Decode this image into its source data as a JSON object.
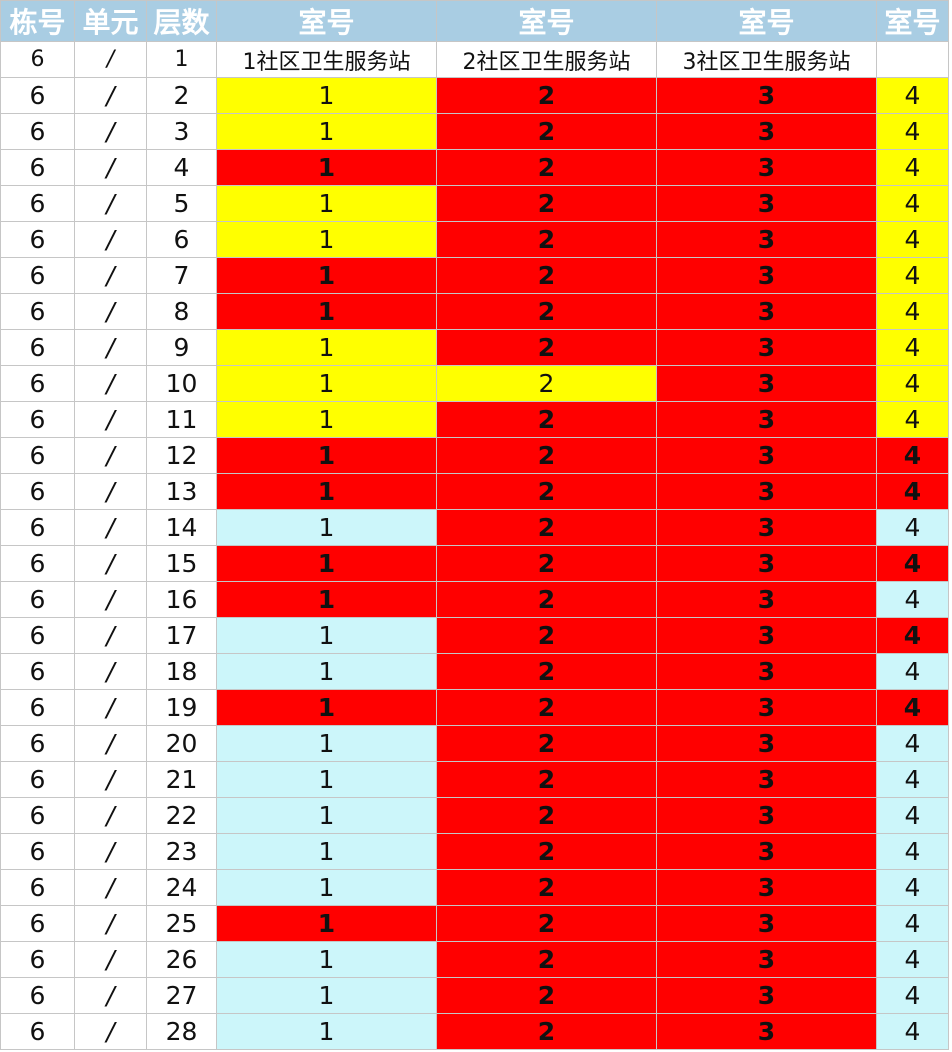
{
  "headers": [
    "栋号",
    "单元",
    "层数",
    "室号",
    "室号",
    "室号",
    "室号"
  ],
  "subheaders": [
    "6",
    "/",
    "1",
    "1社区卫生服务站",
    "2社区卫生服务站",
    "3社区卫生服务站",
    ""
  ],
  "colors": {
    "Y": "#ffff00",
    "R": "#ff0000",
    "C": "#ccf6fa",
    "header": "#a9cde3"
  },
  "rows": [
    {
      "floor": "2",
      "c1": "Y",
      "c2": "R",
      "c3": "R",
      "c4": "Y"
    },
    {
      "floor": "3",
      "c1": "Y",
      "c2": "R",
      "c3": "R",
      "c4": "Y"
    },
    {
      "floor": "4",
      "c1": "R",
      "c2": "R",
      "c3": "R",
      "c4": "Y"
    },
    {
      "floor": "5",
      "c1": "Y",
      "c2": "R",
      "c3": "R",
      "c4": "Y"
    },
    {
      "floor": "6",
      "c1": "Y",
      "c2": "R",
      "c3": "R",
      "c4": "Y"
    },
    {
      "floor": "7",
      "c1": "R",
      "c2": "R",
      "c3": "R",
      "c4": "Y"
    },
    {
      "floor": "8",
      "c1": "R",
      "c2": "R",
      "c3": "R",
      "c4": "Y"
    },
    {
      "floor": "9",
      "c1": "Y",
      "c2": "R",
      "c3": "R",
      "c4": "Y"
    },
    {
      "floor": "10",
      "c1": "Y",
      "c2": "Y",
      "c3": "R",
      "c4": "Y"
    },
    {
      "floor": "11",
      "c1": "Y",
      "c2": "R",
      "c3": "R",
      "c4": "Y"
    },
    {
      "floor": "12",
      "c1": "R",
      "c2": "R",
      "c3": "R",
      "c4": "R"
    },
    {
      "floor": "13",
      "c1": "R",
      "c2": "R",
      "c3": "R",
      "c4": "R"
    },
    {
      "floor": "14",
      "c1": "C",
      "c2": "R",
      "c3": "R",
      "c4": "C"
    },
    {
      "floor": "15",
      "c1": "R",
      "c2": "R",
      "c3": "R",
      "c4": "R"
    },
    {
      "floor": "16",
      "c1": "R",
      "c2": "R",
      "c3": "R",
      "c4": "C"
    },
    {
      "floor": "17",
      "c1": "C",
      "c2": "R",
      "c3": "R",
      "c4": "R"
    },
    {
      "floor": "18",
      "c1": "C",
      "c2": "R",
      "c3": "R",
      "c4": "C"
    },
    {
      "floor": "19",
      "c1": "R",
      "c2": "R",
      "c3": "R",
      "c4": "R"
    },
    {
      "floor": "20",
      "c1": "C",
      "c2": "R",
      "c3": "R",
      "c4": "C"
    },
    {
      "floor": "21",
      "c1": "C",
      "c2": "R",
      "c3": "R",
      "c4": "C"
    },
    {
      "floor": "22",
      "c1": "C",
      "c2": "R",
      "c3": "R",
      "c4": "C"
    },
    {
      "floor": "23",
      "c1": "C",
      "c2": "R",
      "c3": "R",
      "c4": "C"
    },
    {
      "floor": "24",
      "c1": "C",
      "c2": "R",
      "c3": "R",
      "c4": "C"
    },
    {
      "floor": "25",
      "c1": "R",
      "c2": "R",
      "c3": "R",
      "c4": "C"
    },
    {
      "floor": "26",
      "c1": "C",
      "c2": "R",
      "c3": "R",
      "c4": "C"
    },
    {
      "floor": "27",
      "c1": "C",
      "c2": "R",
      "c3": "R",
      "c4": "C"
    },
    {
      "floor": "28",
      "c1": "C",
      "c2": "R",
      "c3": "R",
      "c4": "C"
    }
  ],
  "building": "6",
  "unit": "/",
  "room_numbers": [
    "1",
    "2",
    "3",
    "4"
  ]
}
